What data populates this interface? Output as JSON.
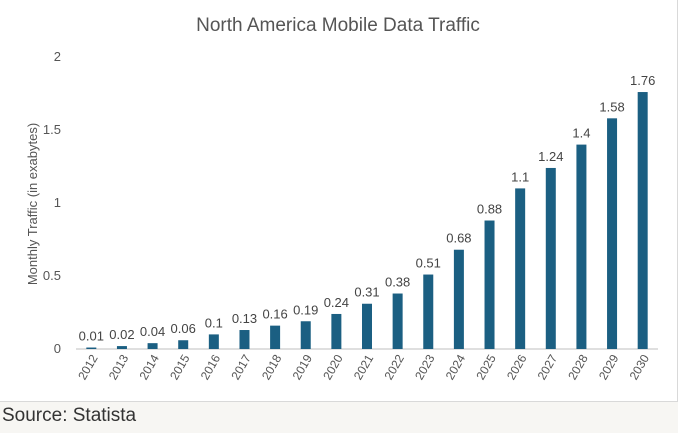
{
  "chart_data": {
    "type": "bar",
    "title": "North America Mobile Data Traffic",
    "xlabel": "",
    "ylabel": "Monthly Traffic (in exabytes)",
    "categories": [
      "2012",
      "2013",
      "2014",
      "2015",
      "2016",
      "2017",
      "2018",
      "2019",
      "2020",
      "2021",
      "2022",
      "2023",
      "2024",
      "2025",
      "2026",
      "2027",
      "2028",
      "2029",
      "2030"
    ],
    "values": [
      0.01,
      0.02,
      0.04,
      0.06,
      0.1,
      0.13,
      0.16,
      0.19,
      0.24,
      0.31,
      0.38,
      0.51,
      0.68,
      0.88,
      1.1,
      1.24,
      1.4,
      1.58,
      1.76
    ],
    "data_labels": [
      "0.01",
      "0.02",
      "0.04",
      "0.06",
      "0.1",
      "0.13",
      "0.16",
      "0.19",
      "0.24",
      "0.31",
      "0.38",
      "0.51",
      "0.68",
      "0.88",
      "1.1",
      "1.24",
      "1.4",
      "1.58",
      "1.76"
    ],
    "y_ticks": [
      0,
      0.5,
      1,
      1.5,
      2
    ],
    "y_tick_labels": [
      "0",
      "0.5",
      "1",
      "1.5",
      "2"
    ],
    "ylim": [
      0,
      2
    ],
    "grid": false,
    "bar_color": "#1b5f82",
    "legend": "none"
  },
  "footer": {
    "source": "Source: Statista"
  }
}
